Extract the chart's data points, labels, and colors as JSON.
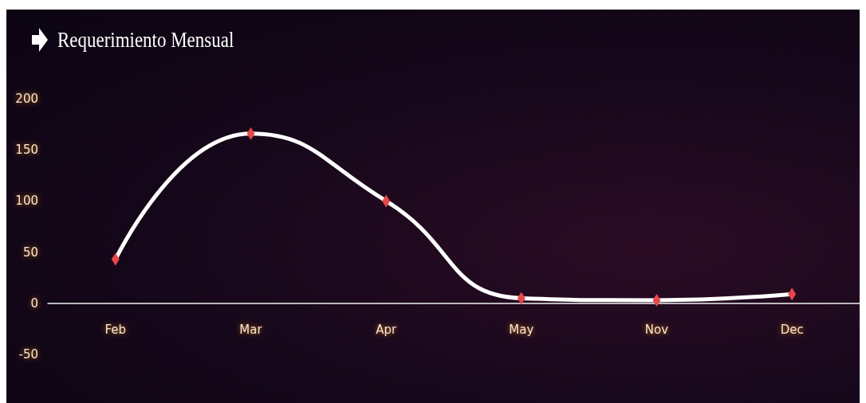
{
  "chart_data": {
    "type": "line",
    "title": "Requerimiento Mensual",
    "categories": [
      "Feb",
      "Mar",
      "Apr",
      "May",
      "Nov",
      "Dec"
    ],
    "series": [
      {
        "color": "#ffffff",
        "values": [
          43,
          166,
          100,
          5,
          3,
          9
        ]
      }
    ],
    "ylim": [
      -50,
      200
    ],
    "yticks": [
      -50,
      0,
      50,
      100,
      150,
      200
    ],
    "marker": "diamond",
    "line_style": "solid"
  }
}
